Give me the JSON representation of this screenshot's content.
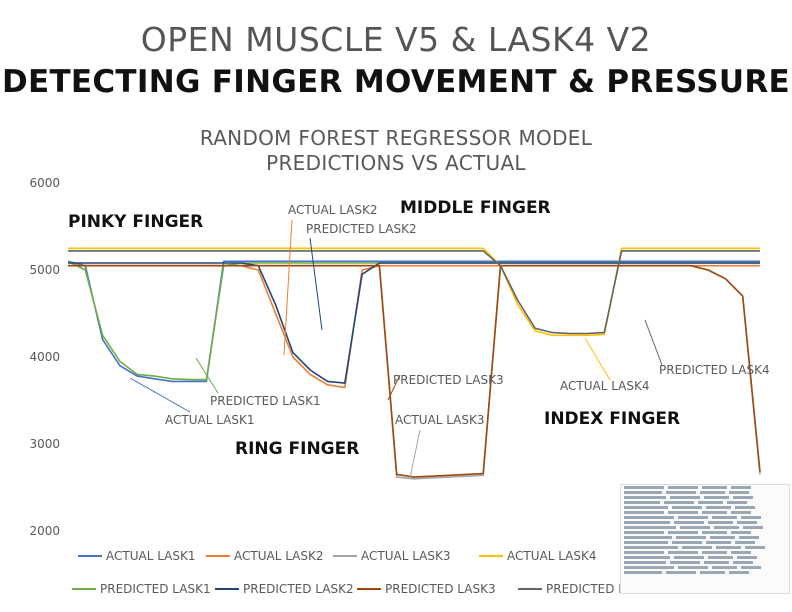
{
  "header": {
    "title": "OPEN MUSCLE V5 & LASK4 V2",
    "subtitle": "DETECTING FINGER MOVEMENT & PRESSURE"
  },
  "chart_data": {
    "type": "line",
    "title_line1": "RANDOM FOREST REGRESSOR MODEL",
    "title_line2": "PREDICTIONS VS ACTUAL",
    "ylim": [
      2000,
      6000
    ],
    "yticks": [
      "6000",
      "5000",
      "4000",
      "3000",
      "2000"
    ],
    "x": [
      0,
      20,
      40,
      60,
      80,
      100,
      120,
      140,
      160,
      180,
      200,
      220,
      240,
      260,
      280,
      300,
      320,
      340,
      360,
      380,
      400,
      420,
      440,
      460,
      480,
      500,
      520,
      540,
      560,
      580,
      600,
      620,
      640,
      660,
      680,
      700,
      720,
      740,
      760,
      780,
      800
    ],
    "series": [
      {
        "name": "ACTUAL LASK1",
        "color": "#4472c4",
        "values": [
          5100,
          5050,
          4200,
          3900,
          3780,
          3750,
          3720,
          3720,
          3720,
          5100,
          5100,
          5100,
          5100,
          5100,
          5100,
          5100,
          5100,
          5100,
          5100,
          5100,
          5100,
          5100,
          5100,
          5100,
          5100,
          5100,
          5100,
          5100,
          5100,
          5100,
          5100,
          5100,
          5100,
          5100,
          5100,
          5100,
          5100,
          5100,
          5100,
          5100,
          5100
        ]
      },
      {
        "name": "ACTUAL LASK2",
        "color": "#ed7d31",
        "values": [
          5050,
          5050,
          5050,
          5050,
          5050,
          5050,
          5050,
          5050,
          5050,
          5050,
          5050,
          5000,
          4500,
          4000,
          3800,
          3680,
          3650,
          5000,
          5050,
          5050,
          5050,
          5050,
          5050,
          5050,
          5050,
          5050,
          5050,
          5050,
          5050,
          5050,
          5050,
          5050,
          5050,
          5050,
          5050,
          5050,
          5050,
          5050,
          5050,
          5050,
          5050
        ]
      },
      {
        "name": "ACTUAL LASK3",
        "color": "#a5a5a5",
        "values": [
          5050,
          5050,
          5050,
          5050,
          5050,
          5050,
          5050,
          5050,
          5050,
          5050,
          5050,
          5050,
          5050,
          5050,
          5050,
          5050,
          5050,
          5050,
          5050,
          2620,
          2600,
          2610,
          2620,
          2630,
          2640,
          5050,
          5050,
          5050,
          5050,
          5050,
          5050,
          5050,
          5050,
          5050,
          5050,
          5050,
          5050,
          5000,
          4900,
          4700,
          2650
        ]
      },
      {
        "name": "ACTUAL LASK4",
        "color": "#ffc000",
        "values": [
          5250,
          5250,
          5250,
          5250,
          5250,
          5250,
          5250,
          5250,
          5250,
          5250,
          5250,
          5250,
          5250,
          5250,
          5250,
          5250,
          5250,
          5250,
          5250,
          5250,
          5250,
          5250,
          5250,
          5250,
          5250,
          5050,
          4600,
          4300,
          4250,
          4250,
          4250,
          4260,
          5250,
          5250,
          5250,
          5250,
          5250,
          5250,
          5250,
          5250,
          5250
        ]
      },
      {
        "name": "PREDICTED LASK1",
        "color": "#70ad47",
        "values": [
          5100,
          5000,
          4250,
          3950,
          3800,
          3780,
          3750,
          3740,
          3740,
          5050,
          5080,
          5080,
          5080,
          5080,
          5080,
          5080,
          5080,
          5080,
          5080,
          5080,
          5080,
          5080,
          5080,
          5080,
          5080,
          5080,
          5080,
          5080,
          5080,
          5080,
          5080,
          5080,
          5080,
          5080,
          5080,
          5080,
          5080,
          5080,
          5080,
          5080,
          5080
        ]
      },
      {
        "name": "PREDICTED LASK2",
        "color": "#264478",
        "values": [
          5080,
          5080,
          5080,
          5080,
          5080,
          5080,
          5080,
          5080,
          5080,
          5080,
          5080,
          5050,
          4600,
          4050,
          3850,
          3720,
          3700,
          4950,
          5080,
          5080,
          5080,
          5080,
          5080,
          5080,
          5080,
          5080,
          5080,
          5080,
          5080,
          5080,
          5080,
          5080,
          5080,
          5080,
          5080,
          5080,
          5080,
          5080,
          5080,
          5080,
          5080
        ]
      },
      {
        "name": "PREDICTED LASK3",
        "color": "#9e480e",
        "values": [
          5050,
          5050,
          5050,
          5050,
          5050,
          5050,
          5050,
          5050,
          5050,
          5050,
          5050,
          5050,
          5050,
          5050,
          5050,
          5050,
          5050,
          5050,
          5050,
          2650,
          2620,
          2630,
          2640,
          2650,
          2660,
          5050,
          5050,
          5050,
          5050,
          5050,
          5050,
          5050,
          5050,
          5050,
          5050,
          5050,
          5050,
          5000,
          4900,
          4700,
          2680
        ]
      },
      {
        "name": "PREDICTED LASK4",
        "color": "#636363",
        "values": [
          5220,
          5220,
          5220,
          5220,
          5220,
          5220,
          5220,
          5220,
          5220,
          5220,
          5220,
          5220,
          5220,
          5220,
          5220,
          5220,
          5220,
          5220,
          5220,
          5220,
          5220,
          5220,
          5220,
          5220,
          5220,
          5050,
          4650,
          4330,
          4280,
          4270,
          4270,
          4280,
          5220,
          5220,
          5220,
          5220,
          5220,
          5220,
          5220,
          5220,
          5220
        ]
      }
    ],
    "annotations": [
      {
        "text": "PINKY FINGER",
        "kind": "finger"
      },
      {
        "text": "MIDDLE FINGER",
        "kind": "finger"
      },
      {
        "text": "RING FINGER",
        "kind": "finger"
      },
      {
        "text": "INDEX FINGER",
        "kind": "finger"
      },
      {
        "text": "ACTUAL LASK2",
        "kind": "label"
      },
      {
        "text": "PREDICTED LASK2",
        "kind": "label"
      },
      {
        "text": "PREDICTED LASK1",
        "kind": "label"
      },
      {
        "text": "ACTUAL LASK1",
        "kind": "label"
      },
      {
        "text": "PREDICTED LASK3",
        "kind": "label"
      },
      {
        "text": "ACTUAL LASK3",
        "kind": "label"
      },
      {
        "text": "PREDICTED LASK4",
        "kind": "label"
      },
      {
        "text": "ACTUAL LASK4",
        "kind": "label"
      }
    ],
    "legend_placement": "bottom",
    "grid": false
  }
}
